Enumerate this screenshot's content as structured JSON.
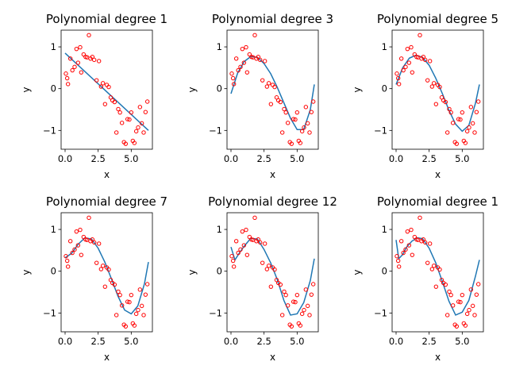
{
  "chart_data": [
    {
      "type": "scatter",
      "title": "Polynomial degree 1",
      "xlabel": "x",
      "ylabel": "y",
      "xlim": [
        -0.3,
        6.6
      ],
      "ylim": [
        -1.45,
        1.4
      ],
      "xticks": [
        0.0,
        2.5,
        5.0
      ],
      "xtick_labels": [
        "0.0",
        "2.5",
        "5.0"
      ],
      "yticks": [
        -1,
        0,
        1
      ],
      "ytick_labels": [
        "−1",
        "0",
        "1"
      ],
      "fit": {
        "x": [
          0.0,
          6.3
        ],
        "y": [
          0.85,
          -1.0
        ]
      }
    },
    {
      "type": "scatter",
      "title": "Polynomial degree 3",
      "xlabel": "x",
      "ylabel": "y",
      "xlim": [
        -0.3,
        6.6
      ],
      "ylim": [
        -1.45,
        1.4
      ],
      "xticks": [
        0.0,
        2.5,
        5.0
      ],
      "xtick_labels": [
        "0.0",
        "2.5",
        "5.0"
      ],
      "yticks": [
        -1,
        0,
        1
      ],
      "ytick_labels": [
        "−1",
        "0",
        "1"
      ],
      "fit": {
        "x": [
          0.0,
          0.5,
          1.0,
          1.5,
          2.0,
          2.5,
          3.0,
          3.5,
          4.0,
          4.5,
          5.0,
          5.5,
          6.0,
          6.3
        ],
        "y": [
          -0.12,
          0.37,
          0.65,
          0.77,
          0.75,
          0.6,
          0.36,
          0.03,
          -0.34,
          -0.71,
          -0.98,
          -0.98,
          -0.5,
          0.1
        ]
      }
    },
    {
      "type": "scatter",
      "title": "Polynomial degree 5",
      "xlabel": "x",
      "ylabel": "y",
      "xlim": [
        -0.3,
        6.6
      ],
      "ylim": [
        -1.45,
        1.4
      ],
      "xticks": [
        0.0,
        2.5,
        5.0
      ],
      "xtick_labels": [
        "0.0",
        "2.5",
        "5.0"
      ],
      "yticks": [
        -1,
        0,
        1
      ],
      "ytick_labels": [
        "−1",
        "0",
        "1"
      ],
      "fit": {
        "x": [
          0.0,
          0.5,
          1.0,
          1.5,
          2.0,
          2.5,
          3.0,
          3.5,
          4.0,
          4.5,
          5.0,
          5.5,
          6.0,
          6.3
        ],
        "y": [
          0.1,
          0.5,
          0.73,
          0.8,
          0.75,
          0.56,
          0.25,
          -0.12,
          -0.52,
          -0.85,
          -1.02,
          -0.88,
          -0.35,
          0.1
        ]
      }
    },
    {
      "type": "scatter",
      "title": "Polynomial degree 7",
      "xlabel": "x",
      "ylabel": "y",
      "xlim": [
        -0.3,
        6.6
      ],
      "ylim": [
        -1.45,
        1.4
      ],
      "xticks": [
        0.0,
        2.5,
        5.0
      ],
      "xtick_labels": [
        "0.0",
        "2.5",
        "5.0"
      ],
      "yticks": [
        -1,
        0,
        1
      ],
      "ytick_labels": [
        "−1",
        "0",
        "1"
      ],
      "fit": {
        "x": [
          0.0,
          0.5,
          1.0,
          1.5,
          2.0,
          2.5,
          3.0,
          3.5,
          4.0,
          4.5,
          5.0,
          5.5,
          6.0,
          6.3
        ],
        "y": [
          0.32,
          0.43,
          0.65,
          0.8,
          0.77,
          0.55,
          0.22,
          -0.18,
          -0.6,
          -0.93,
          -1.02,
          -0.83,
          -0.3,
          0.22
        ]
      }
    },
    {
      "type": "scatter",
      "title": "Polynomial degree 12",
      "xlabel": "x",
      "ylabel": "y",
      "xlim": [
        -0.3,
        6.6
      ],
      "ylim": [
        -1.45,
        1.4
      ],
      "xticks": [
        0.0,
        2.5,
        5.0
      ],
      "xtick_labels": [
        "0.0",
        "2.5",
        "5.0"
      ],
      "yticks": [
        -1,
        0,
        1
      ],
      "ytick_labels": [
        "−1",
        "0",
        "1"
      ],
      "fit": {
        "x": [
          0.0,
          0.3,
          0.6,
          1.0,
          1.5,
          2.0,
          2.5,
          3.0,
          3.5,
          4.0,
          4.5,
          5.0,
          5.5,
          6.0,
          6.3
        ],
        "y": [
          0.58,
          0.27,
          0.42,
          0.6,
          0.79,
          0.77,
          0.52,
          0.2,
          -0.2,
          -0.7,
          -1.05,
          -1.02,
          -0.75,
          -0.22,
          0.3
        ]
      }
    },
    {
      "type": "scatter",
      "title": "Polynomial degree 1",
      "xlabel": "x",
      "ylabel": "y",
      "xlim": [
        -0.3,
        6.6
      ],
      "ylim": [
        -1.45,
        1.4
      ],
      "xticks": [
        0.0,
        2.5,
        5.0
      ],
      "xtick_labels": [
        "0.0",
        "2.5",
        "5.0"
      ],
      "yticks": [
        -1,
        0,
        1
      ],
      "ytick_labels": [
        "−1",
        "0",
        "1"
      ],
      "fit": {
        "x": [
          0.0,
          0.2,
          0.5,
          0.8,
          1.2,
          1.6,
          2.0,
          2.5,
          3.0,
          3.5,
          4.0,
          4.5,
          5.0,
          5.5,
          6.0,
          6.3
        ],
        "y": [
          0.75,
          0.3,
          0.4,
          0.58,
          0.72,
          0.8,
          0.78,
          0.55,
          0.2,
          -0.25,
          -0.72,
          -1.05,
          -0.98,
          -0.7,
          -0.12,
          0.27
        ]
      }
    }
  ],
  "scatter_points": {
    "x": [
      0.06,
      0.16,
      0.22,
      0.4,
      0.55,
      0.72,
      0.86,
      0.98,
      1.14,
      1.22,
      1.4,
      1.55,
      1.66,
      1.8,
      1.92,
      2.06,
      2.2,
      2.38,
      2.56,
      2.72,
      2.86,
      3.02,
      3.15,
      3.3,
      3.45,
      3.58,
      3.74,
      3.88,
      4.02,
      4.15,
      4.3,
      4.45,
      4.58,
      4.72,
      4.86,
      5.0,
      5.12,
      5.24,
      5.38,
      5.52,
      5.66,
      5.8,
      5.94,
      6.08,
      6.22
    ],
    "y": [
      0.36,
      0.25,
      0.11,
      0.72,
      0.44,
      0.52,
      0.95,
      0.62,
      0.99,
      0.39,
      0.82,
      0.76,
      0.75,
      1.28,
      0.72,
      0.76,
      0.69,
      0.2,
      0.66,
      0.05,
      0.13,
      -0.37,
      0.09,
      0.04,
      -0.21,
      -0.28,
      -0.32,
      -1.05,
      -0.49,
      -0.57,
      -0.82,
      -1.28,
      -1.32,
      -0.73,
      -0.74,
      -0.57,
      -1.25,
      -1.3,
      -1.02,
      -0.93,
      -0.44,
      -0.83,
      -1.05,
      -0.56,
      -0.31
    ]
  },
  "colors": {
    "fit_line": "#1f77b4",
    "points": "#ff0000",
    "axes": "#000000"
  }
}
